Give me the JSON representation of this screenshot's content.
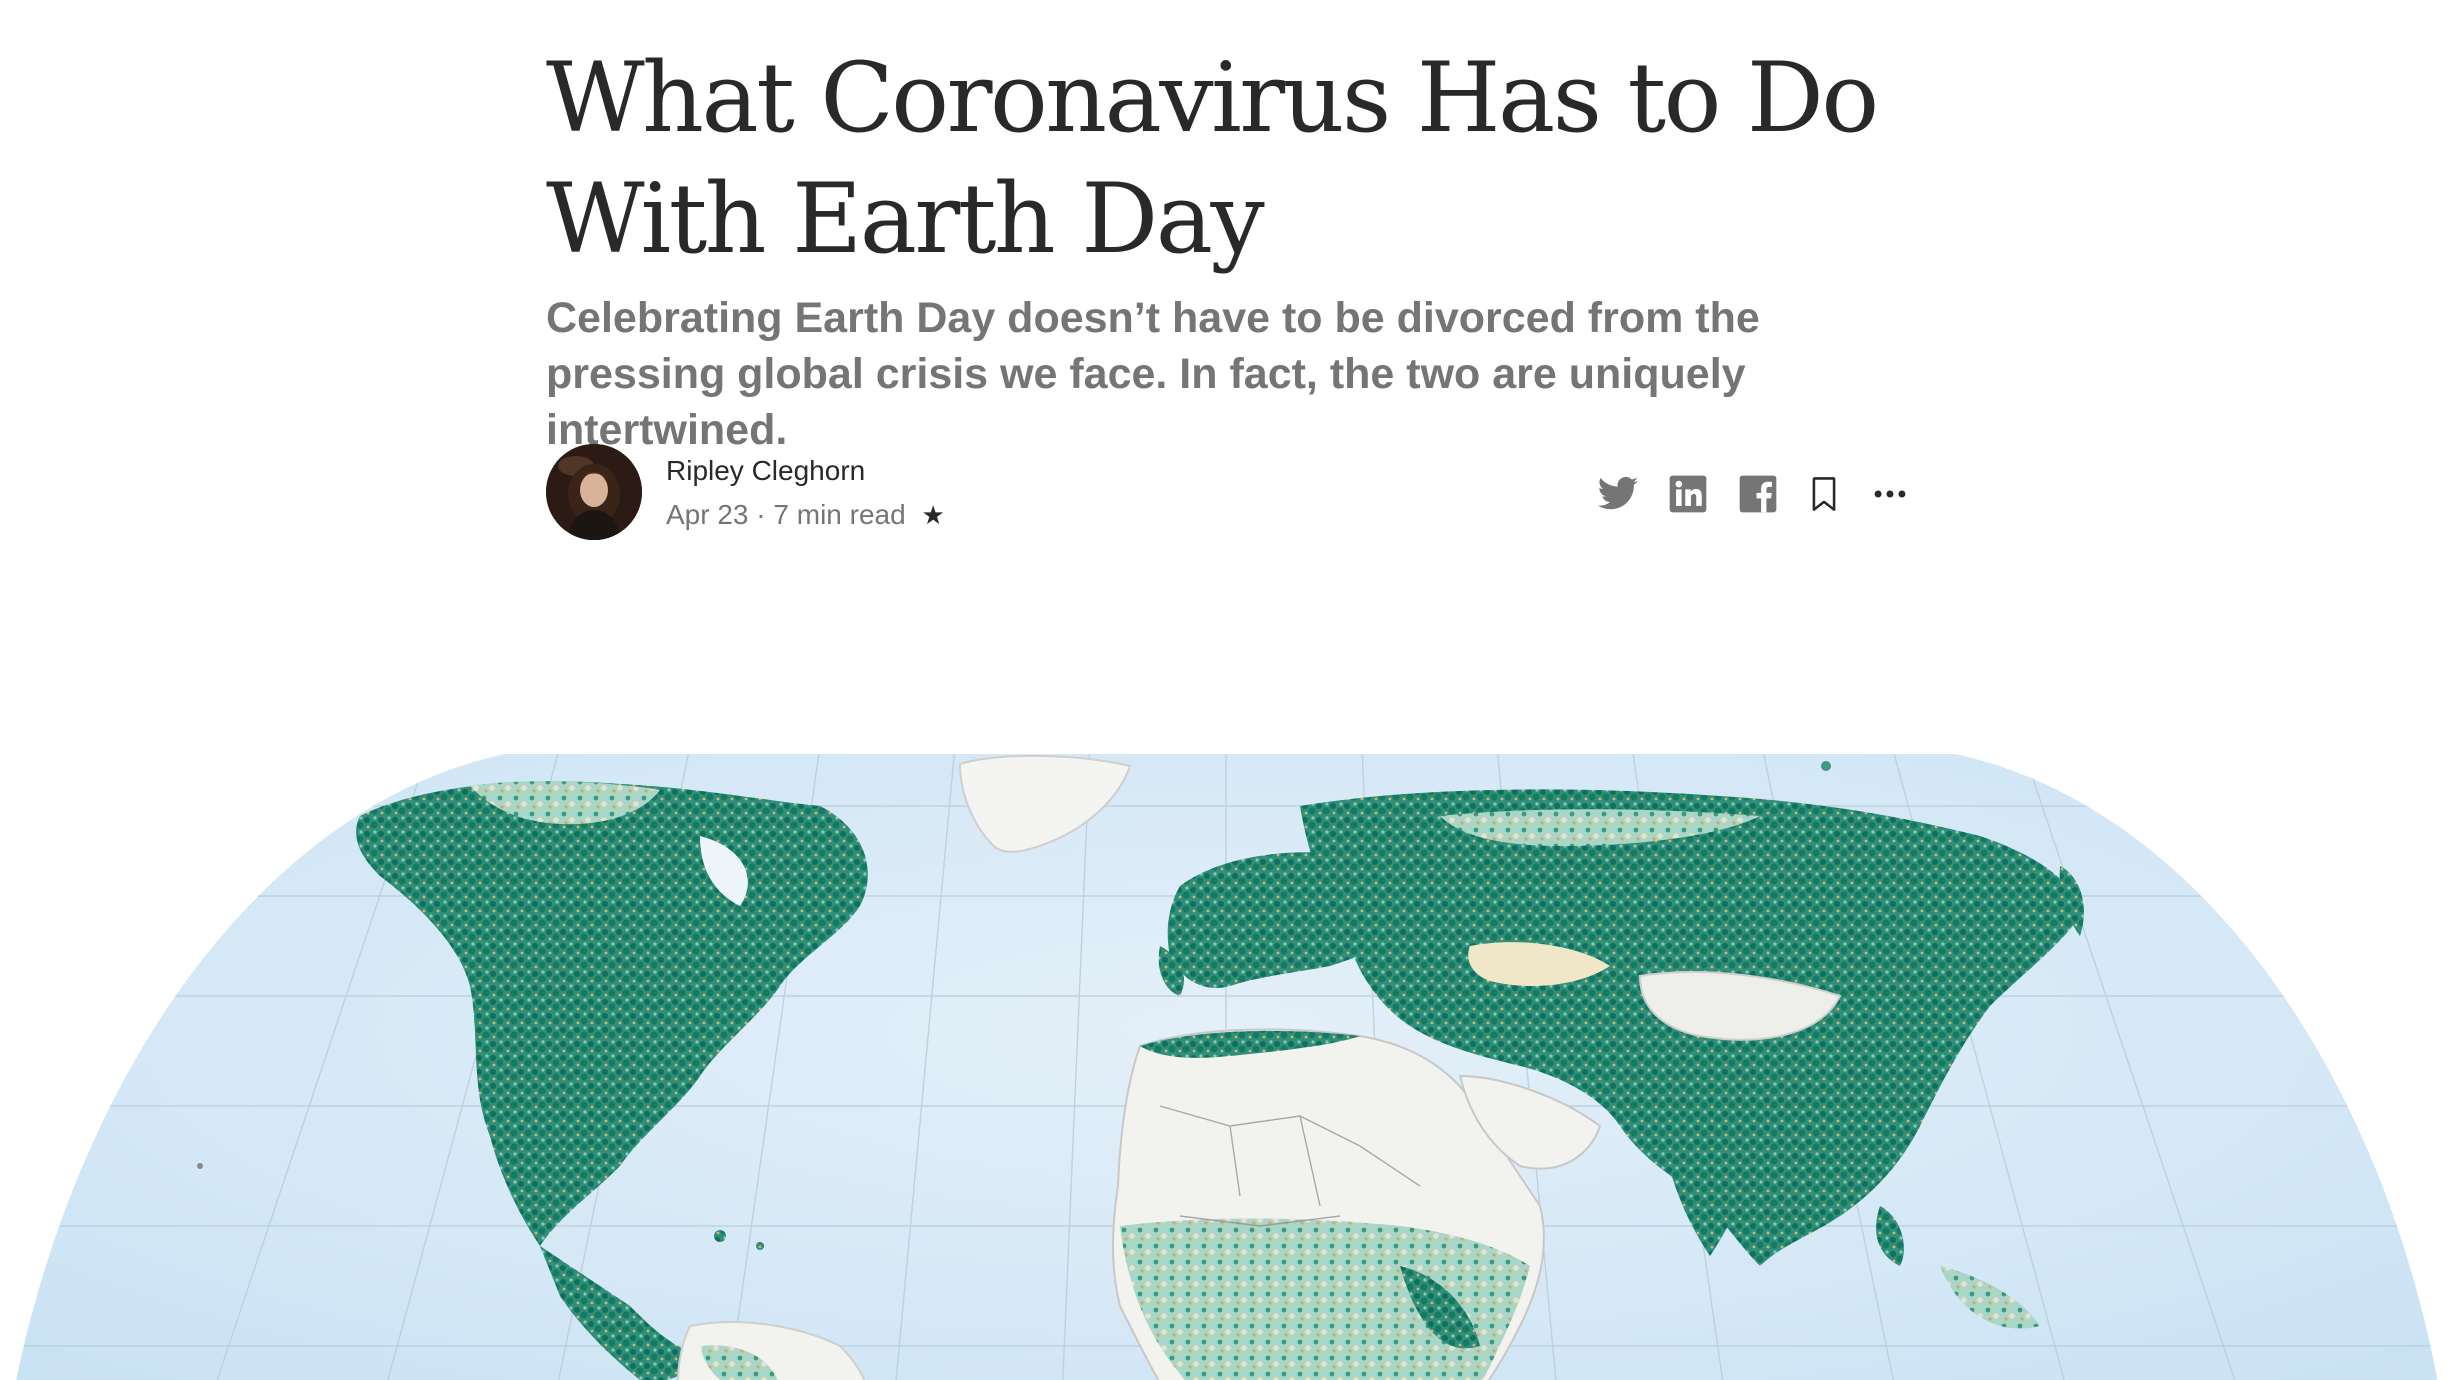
{
  "article": {
    "title": "What Coronavirus Has to Do With Earth Day",
    "subtitle": "Celebrating Earth Day doesn’t have to be divorced from the pressing global crisis we face. In fact, the two are uniquely intertwined."
  },
  "author": {
    "name": "Ripley Cleghorn",
    "date": "Apr 23",
    "separator": "·",
    "read_time": "7 min read",
    "member_star": "★"
  },
  "share": {
    "icons": [
      "twitter-icon",
      "linkedin-icon",
      "facebook-icon",
      "bookmark-icon",
      "more-icon"
    ]
  },
  "colors": {
    "text": "#292929",
    "muted": "#757575",
    "icon": "#757575",
    "ocean": "#d6e9f7",
    "vegetation": "#0f6f5c",
    "land_light": "#f2f2ee"
  }
}
